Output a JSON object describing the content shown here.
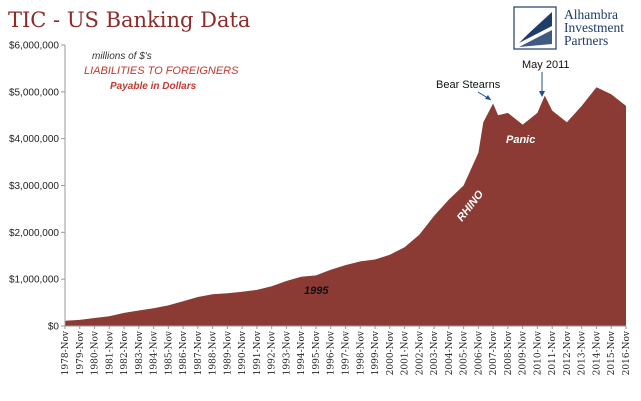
{
  "header": {
    "title": "TIC - US Banking Data",
    "logo_lines": [
      "Alhambra",
      "Investment",
      "Partners"
    ]
  },
  "colors": {
    "area_fill": "#8b3a34",
    "title": "#8e2b2b",
    "note_red": "#c2382f",
    "logo_blue": "#1f3d6b"
  },
  "chart_data": {
    "type": "area",
    "title": "TIC - US Banking Data",
    "ylabel": "",
    "xlabel": "",
    "ylim": [
      0,
      6000000
    ],
    "y_ticks": [
      "$0",
      "$1,000,000",
      "$2,000,000",
      "$3,000,000",
      "$4,000,000",
      "$5,000,000",
      "$6,000,000"
    ],
    "x_ticks": [
      "1978-Nov",
      "1979-Nov",
      "1980-Nov",
      "1981-Nov",
      "1982-Nov",
      "1983-Nov",
      "1984-Nov",
      "1985-Nov",
      "1986-Nov",
      "1987-Nov",
      "1988-Nov",
      "1989-Nov",
      "1990-Nov",
      "1991-Nov",
      "1992-Nov",
      "1993-Nov",
      "1994-Nov",
      "1995-Nov",
      "1996-Nov",
      "1997-Nov",
      "1998-Nov",
      "1999-Nov",
      "2000-Nov",
      "2001-Nov",
      "2002-Nov",
      "2003-Nov",
      "2004-Nov",
      "2005-Nov",
      "2006-Nov",
      "2007-Nov",
      "2008-Nov",
      "2009-Nov",
      "2010-Nov",
      "2011-Nov",
      "2012-Nov",
      "2013-Nov",
      "2014-Nov",
      "2015-Nov",
      "2016-Nov"
    ],
    "series": [
      {
        "values": [
          {
            "x": "1978-Nov",
            "y": 110000
          },
          {
            "x": "1979-Nov",
            "y": 130000
          },
          {
            "x": "1980-Nov",
            "y": 170000
          },
          {
            "x": "1981-Nov",
            "y": 210000
          },
          {
            "x": "1982-Nov",
            "y": 280000
          },
          {
            "x": "1983-Nov",
            "y": 330000
          },
          {
            "x": "1984-Nov",
            "y": 380000
          },
          {
            "x": "1985-Nov",
            "y": 440000
          },
          {
            "x": "1986-Nov",
            "y": 530000
          },
          {
            "x": "1987-Nov",
            "y": 620000
          },
          {
            "x": "1988-Nov",
            "y": 680000
          },
          {
            "x": "1989-Nov",
            "y": 700000
          },
          {
            "x": "1990-Nov",
            "y": 730000
          },
          {
            "x": "1991-Nov",
            "y": 770000
          },
          {
            "x": "1992-Nov",
            "y": 850000
          },
          {
            "x": "1993-Nov",
            "y": 960000
          },
          {
            "x": "1994-Nov",
            "y": 1050000
          },
          {
            "x": "1995-Nov",
            "y": 1080000
          },
          {
            "x": "1996-Nov",
            "y": 1200000
          },
          {
            "x": "1997-Nov",
            "y": 1300000
          },
          {
            "x": "1998-Nov",
            "y": 1380000
          },
          {
            "x": "1999-Nov",
            "y": 1420000
          },
          {
            "x": "2000-Nov",
            "y": 1520000
          },
          {
            "x": "2001-Nov",
            "y": 1680000
          },
          {
            "x": "2002-Nov",
            "y": 1950000
          },
          {
            "x": "2003-Nov",
            "y": 2350000
          },
          {
            "x": "2004-Nov",
            "y": 2700000
          },
          {
            "x": "2005-Nov",
            "y": 3000000
          },
          {
            "x": "2006-Nov",
            "y": 3700000
          },
          {
            "x": "2007-Mar",
            "y": 4350000
          },
          {
            "x": "2007-Nov",
            "y": 4750000
          },
          {
            "x": "2008-Mar",
            "y": 4500000
          },
          {
            "x": "2008-Nov",
            "y": 4550000
          },
          {
            "x": "2009-Nov",
            "y": 4300000
          },
          {
            "x": "2010-Nov",
            "y": 4550000
          },
          {
            "x": "2011-May",
            "y": 4920000
          },
          {
            "x": "2011-Nov",
            "y": 4600000
          },
          {
            "x": "2012-Nov",
            "y": 4350000
          },
          {
            "x": "2013-Nov",
            "y": 4700000
          },
          {
            "x": "2014-Nov",
            "y": 5100000
          },
          {
            "x": "2015-Nov",
            "y": 4950000
          },
          {
            "x": "2016-Nov",
            "y": 4700000
          }
        ]
      }
    ],
    "annotations": {
      "units": "millions of $'s",
      "heading": "LIABILITIES TO FOREIGNERS",
      "subheading": "Payable in Dollars",
      "bear_stearns": "Bear Stearns",
      "may_2011": "May 2011",
      "panic": "Panic",
      "rhino": "RHINO",
      "year_1995": "1995"
    },
    "grid": false,
    "legend": "none"
  }
}
